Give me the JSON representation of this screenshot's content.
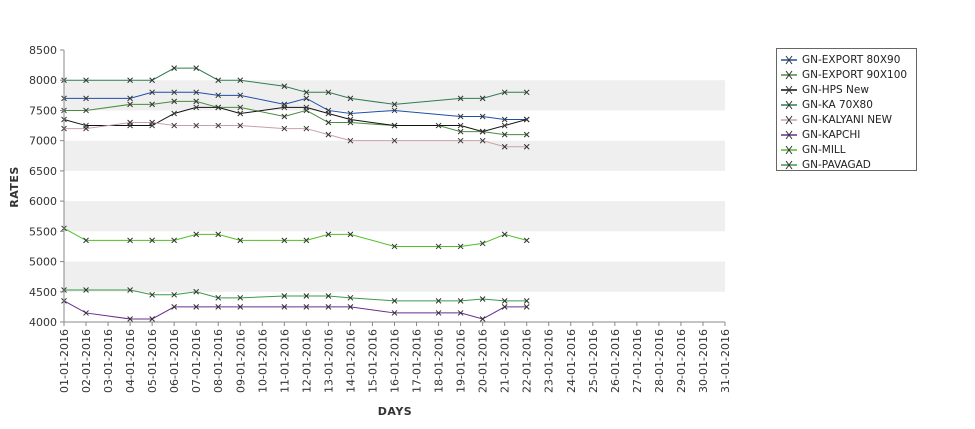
{
  "chart_data": {
    "type": "line",
    "xlabel": "DAYS",
    "ylabel": "RATES",
    "ylim": [
      4000,
      8500
    ],
    "yticks": [
      4000,
      4500,
      5000,
      5500,
      6000,
      6500,
      7000,
      7500,
      8000,
      8500
    ],
    "x": [
      "01-01-2016",
      "02-01-2016",
      "03-01-2016",
      "04-01-2016",
      "05-01-2016",
      "06-01-2016",
      "07-01-2016",
      "08-01-2016",
      "09-01-2016",
      "10-01-2016",
      "11-01-2016",
      "12-01-2016",
      "13-01-2016",
      "14-01-2016",
      "15-01-2016",
      "16-01-2016",
      "17-01-2016",
      "18-01-2016",
      "19-01-2016",
      "20-01-2016",
      "21-01-2016",
      "22-01-2016",
      "23-01-2016",
      "24-01-2016",
      "25-01-2016",
      "26-01-2016",
      "27-01-2016",
      "28-01-2016",
      "29-01-2016",
      "30-01-2016",
      "31-01-2016"
    ],
    "grid": "alternating horizontal bands",
    "legend_position": "right",
    "series": [
      {
        "name": "GN-EXPORT 80X90",
        "color": "#1f4fa8",
        "points": [
          [
            "01-01-2016",
            7700
          ],
          [
            "02-01-2016",
            7700
          ],
          [
            "04-01-2016",
            7700
          ],
          [
            "05-01-2016",
            7800
          ],
          [
            "06-01-2016",
            7800
          ],
          [
            "07-01-2016",
            7800
          ],
          [
            "08-01-2016",
            7750
          ],
          [
            "09-01-2016",
            7750
          ],
          [
            "11-01-2016",
            7600
          ],
          [
            "12-01-2016",
            7700
          ],
          [
            "13-01-2016",
            7500
          ],
          [
            "14-01-2016",
            7450
          ],
          [
            "16-01-2016",
            7500
          ],
          [
            "19-01-2016",
            7400
          ],
          [
            "20-01-2016",
            7400
          ],
          [
            "21-01-2016",
            7350
          ],
          [
            "22-01-2016",
            7350
          ]
        ]
      },
      {
        "name": "GN-EXPORT 90X100",
        "color": "#4a8c3f",
        "points": [
          [
            "01-01-2016",
            7500
          ],
          [
            "02-01-2016",
            7500
          ],
          [
            "04-01-2016",
            7600
          ],
          [
            "05-01-2016",
            7600
          ],
          [
            "06-01-2016",
            7650
          ],
          [
            "07-01-2016",
            7650
          ],
          [
            "08-01-2016",
            7550
          ],
          [
            "09-01-2016",
            7550
          ],
          [
            "11-01-2016",
            7400
          ],
          [
            "12-01-2016",
            7500
          ],
          [
            "13-01-2016",
            7300
          ],
          [
            "14-01-2016",
            7300
          ],
          [
            "16-01-2016",
            7250
          ],
          [
            "18-01-2016",
            7250
          ],
          [
            "19-01-2016",
            7150
          ],
          [
            "20-01-2016",
            7150
          ],
          [
            "21-01-2016",
            7100
          ],
          [
            "22-01-2016",
            7100
          ]
        ]
      },
      {
        "name": "GN-HPS New",
        "color": "#111111",
        "points": [
          [
            "01-01-2016",
            7350
          ],
          [
            "02-01-2016",
            7250
          ],
          [
            "04-01-2016",
            7250
          ],
          [
            "05-01-2016",
            7250
          ],
          [
            "06-01-2016",
            7450
          ],
          [
            "07-01-2016",
            7550
          ],
          [
            "08-01-2016",
            7550
          ],
          [
            "09-01-2016",
            7450
          ],
          [
            "11-01-2016",
            7550
          ],
          [
            "12-01-2016",
            7550
          ],
          [
            "13-01-2016",
            7450
          ],
          [
            "14-01-2016",
            7350
          ],
          [
            "16-01-2016",
            7250
          ],
          [
            "19-01-2016",
            7250
          ],
          [
            "20-01-2016",
            7150
          ],
          [
            "21-01-2016",
            7250
          ],
          [
            "22-01-2016",
            7350
          ]
        ]
      },
      {
        "name": "GN-KA 70X80",
        "color": "#2e7d52",
        "points": [
          [
            "01-01-2016",
            8000
          ],
          [
            "02-01-2016",
            8000
          ],
          [
            "04-01-2016",
            8000
          ],
          [
            "05-01-2016",
            8000
          ],
          [
            "06-01-2016",
            8200
          ],
          [
            "07-01-2016",
            8200
          ],
          [
            "08-01-2016",
            8000
          ],
          [
            "09-01-2016",
            8000
          ],
          [
            "11-01-2016",
            7900
          ],
          [
            "12-01-2016",
            7800
          ],
          [
            "13-01-2016",
            7800
          ],
          [
            "14-01-2016",
            7700
          ],
          [
            "16-01-2016",
            7600
          ],
          [
            "19-01-2016",
            7700
          ],
          [
            "20-01-2016",
            7700
          ],
          [
            "21-01-2016",
            7800
          ],
          [
            "22-01-2016",
            7800
          ]
        ]
      },
      {
        "name": "GN-KALYANI NEW",
        "color": "#c9a0a8",
        "points": [
          [
            "01-01-2016",
            7200
          ],
          [
            "02-01-2016",
            7200
          ],
          [
            "04-01-2016",
            7300
          ],
          [
            "05-01-2016",
            7300
          ],
          [
            "06-01-2016",
            7250
          ],
          [
            "07-01-2016",
            7250
          ],
          [
            "08-01-2016",
            7250
          ],
          [
            "09-01-2016",
            7250
          ],
          [
            "11-01-2016",
            7200
          ],
          [
            "12-01-2016",
            7200
          ],
          [
            "13-01-2016",
            7100
          ],
          [
            "14-01-2016",
            7000
          ],
          [
            "16-01-2016",
            7000
          ],
          [
            "19-01-2016",
            7000
          ],
          [
            "20-01-2016",
            7000
          ],
          [
            "21-01-2016",
            6900
          ],
          [
            "22-01-2016",
            6900
          ]
        ]
      },
      {
        "name": "GN-KAPCHI",
        "color": "#6a2c8e",
        "points": [
          [
            "01-01-2016",
            4350
          ],
          [
            "02-01-2016",
            4150
          ],
          [
            "04-01-2016",
            4050
          ],
          [
            "05-01-2016",
            4050
          ],
          [
            "06-01-2016",
            4250
          ],
          [
            "07-01-2016",
            4250
          ],
          [
            "08-01-2016",
            4250
          ],
          [
            "09-01-2016",
            4250
          ],
          [
            "11-01-2016",
            4250
          ],
          [
            "12-01-2016",
            4250
          ],
          [
            "13-01-2016",
            4250
          ],
          [
            "14-01-2016",
            4250
          ],
          [
            "16-01-2016",
            4150
          ],
          [
            "18-01-2016",
            4150
          ],
          [
            "19-01-2016",
            4150
          ],
          [
            "20-01-2016",
            4050
          ],
          [
            "21-01-2016",
            4250
          ],
          [
            "22-01-2016",
            4250
          ]
        ]
      },
      {
        "name": "GN-MILL",
        "color": "#4fbf26",
        "points": [
          [
            "01-01-2016",
            5550
          ],
          [
            "02-01-2016",
            5350
          ],
          [
            "04-01-2016",
            5350
          ],
          [
            "05-01-2016",
            5350
          ],
          [
            "06-01-2016",
            5350
          ],
          [
            "07-01-2016",
            5450
          ],
          [
            "08-01-2016",
            5450
          ],
          [
            "09-01-2016",
            5350
          ],
          [
            "11-01-2016",
            5350
          ],
          [
            "12-01-2016",
            5350
          ],
          [
            "13-01-2016",
            5450
          ],
          [
            "14-01-2016",
            5450
          ],
          [
            "16-01-2016",
            5250
          ],
          [
            "18-01-2016",
            5250
          ],
          [
            "19-01-2016",
            5250
          ],
          [
            "20-01-2016",
            5300
          ],
          [
            "21-01-2016",
            5450
          ],
          [
            "22-01-2016",
            5350
          ]
        ]
      },
      {
        "name": "GN-PAVAGAD",
        "color": "#3a9a4a",
        "points": [
          [
            "01-01-2016",
            4530
          ],
          [
            "02-01-2016",
            4530
          ],
          [
            "04-01-2016",
            4530
          ],
          [
            "05-01-2016",
            4450
          ],
          [
            "06-01-2016",
            4450
          ],
          [
            "07-01-2016",
            4500
          ],
          [
            "08-01-2016",
            4400
          ],
          [
            "09-01-2016",
            4400
          ],
          [
            "11-01-2016",
            4430
          ],
          [
            "12-01-2016",
            4430
          ],
          [
            "13-01-2016",
            4430
          ],
          [
            "14-01-2016",
            4400
          ],
          [
            "16-01-2016",
            4350
          ],
          [
            "18-01-2016",
            4350
          ],
          [
            "19-01-2016",
            4350
          ],
          [
            "20-01-2016",
            4380
          ],
          [
            "21-01-2016",
            4350
          ],
          [
            "22-01-2016",
            4350
          ]
        ]
      }
    ]
  }
}
